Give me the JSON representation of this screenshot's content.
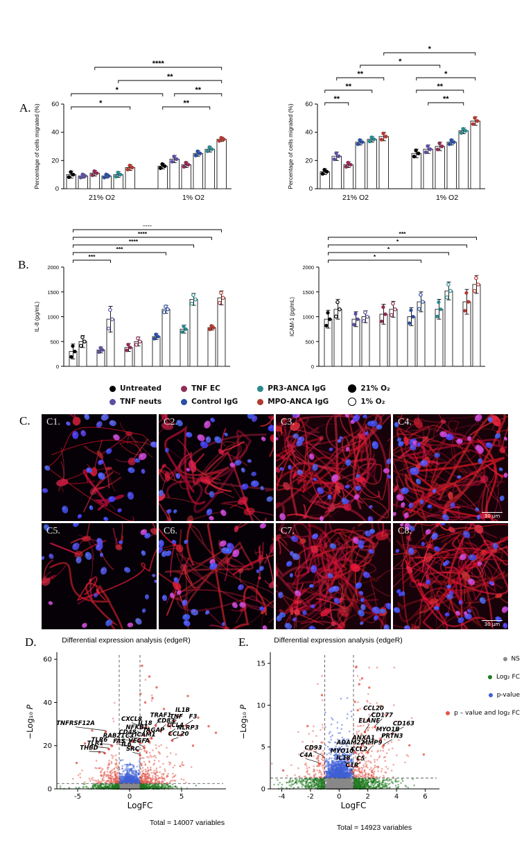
{
  "panels": {
    "a": {
      "label": "A."
    },
    "b": {
      "label": "B."
    },
    "c": {
      "label": "C."
    },
    "d": {
      "label": "D."
    },
    "e": {
      "label": "E."
    }
  },
  "legend": {
    "treatments": [
      {
        "label": "Untreated",
        "color": "#000000"
      },
      {
        "label": "TNF neuts",
        "color": "#5e4fa2"
      },
      {
        "label": "TNF EC",
        "color": "#8f2d56"
      },
      {
        "label": "Control IgG",
        "color": "#2b50a1"
      },
      {
        "label": "PR3-ANCA IgG",
        "color": "#2a8a8f"
      },
      {
        "label": "MPO-ANCA IgG",
        "color": "#b23a30"
      }
    ],
    "oxygen": [
      {
        "label": "21% O₂",
        "style": "filled"
      },
      {
        "label": "1% O₂",
        "style": "open"
      }
    ]
  },
  "volcano_legend": {
    "items": [
      {
        "label": "NS",
        "color": "#8a8a8a"
      },
      {
        "label": "Log₂ FC",
        "color": "#1f7a1f"
      },
      {
        "label": "p-value",
        "color": "#3f5fd6"
      },
      {
        "label": "p – value and log₂ FC",
        "color": "#e25549"
      }
    ]
  },
  "panel_c": {
    "tiles": [
      {
        "label": "C1.",
        "density": "low"
      },
      {
        "label": "C2.",
        "density": "medium"
      },
      {
        "label": "C3.",
        "density": "high"
      },
      {
        "label": "C4.",
        "density": "high",
        "scale_bar": "30 μm"
      },
      {
        "label": "C5.",
        "density": "low"
      },
      {
        "label": "C6.",
        "density": "medium"
      },
      {
        "label": "C7.",
        "density": "high"
      },
      {
        "label": "C8.",
        "density": "high",
        "scale_bar": "30 μm"
      }
    ]
  },
  "chart_data": [
    {
      "id": "A1",
      "type": "bar",
      "panel": "A",
      "ylabel": "Percentage of cells migrated (%)",
      "ylim": [
        0,
        60
      ],
      "yticks": [
        0,
        20,
        40,
        60
      ],
      "groups": [
        "21% O2",
        "1% O2"
      ],
      "series_labels": [
        "Untreated",
        "TNF neuts",
        "TNF EC",
        "Control IgG",
        "PR3-ANCA IgG",
        "MPO-ANCA IgG"
      ],
      "values": [
        [
          10,
          9,
          11,
          9,
          10,
          15
        ],
        [
          16,
          21,
          17,
          25,
          28,
          35
        ]
      ],
      "sd": [
        [
          2.5,
          1.5,
          2,
          1.5,
          2,
          2
        ],
        [
          2,
          2.5,
          2,
          2,
          2,
          1.5
        ]
      ],
      "brackets": [
        {
          "from": 0,
          "to": 5,
          "level": 1,
          "label": "*"
        },
        {
          "from": 6,
          "to": 10,
          "level": 1,
          "label": "**"
        },
        {
          "from": 0,
          "to": 6,
          "level": 2,
          "label": "*"
        },
        {
          "from": 7,
          "to": 11,
          "level": 2,
          "label": "**"
        },
        {
          "from": 4,
          "to": 11,
          "level": 3,
          "label": "**"
        },
        {
          "from": 2,
          "to": 11,
          "level": 4,
          "label": "****"
        }
      ]
    },
    {
      "id": "A2",
      "type": "bar",
      "panel": "A",
      "ylabel": "Percentage of cells migrated (%)",
      "ylim": [
        0,
        60
      ],
      "yticks": [
        0,
        20,
        40,
        60
      ],
      "groups": [
        "21% O2",
        "1% O2"
      ],
      "series_labels": [
        "Untreated",
        "TNF neuts",
        "TNF EC",
        "Control IgG",
        "PR3-ANCA IgG",
        "MPO-ANCA IgG"
      ],
      "values": [
        [
          12,
          23,
          17,
          33,
          35,
          37
        ],
        [
          25,
          28,
          30,
          33,
          41,
          48
        ]
      ],
      "sd": [
        [
          2,
          3,
          2,
          2,
          2,
          3
        ],
        [
          3,
          3,
          3,
          2,
          2,
          3
        ]
      ],
      "brackets": [
        {
          "from": 0,
          "to": 2,
          "level": 1,
          "label": "**"
        },
        {
          "from": 7,
          "to": 10,
          "level": 1,
          "label": "**"
        },
        {
          "from": 0,
          "to": 4,
          "level": 2,
          "label": "**"
        },
        {
          "from": 6,
          "to": 10,
          "level": 2,
          "label": "**"
        },
        {
          "from": 1,
          "to": 5,
          "level": 3,
          "label": "**"
        },
        {
          "from": 6,
          "to": 11,
          "level": 3,
          "label": "*"
        },
        {
          "from": 3,
          "to": 8,
          "level": 4,
          "label": "*"
        },
        {
          "from": 5,
          "to": 11,
          "level": 5,
          "label": "*"
        }
      ]
    },
    {
      "id": "B1",
      "type": "bar",
      "panel": "B",
      "pairs": true,
      "ylabel": "IL-8 (pg/mL)",
      "ylim": [
        0,
        2000
      ],
      "yticks": [
        0,
        500,
        1000,
        1500,
        2000
      ],
      "series_labels": [
        "Untreated",
        "TNF neuts",
        "TNF EC",
        "Control IgG",
        "PR3-ANCA IgG",
        "MPO-ANCA IgG"
      ],
      "pair_labels": [
        "21% O₂",
        "1% O₂"
      ],
      "values": [
        [
          300,
          500
        ],
        [
          330,
          950
        ],
        [
          380,
          500
        ],
        [
          600,
          1150
        ],
        [
          750,
          1350
        ],
        [
          780,
          1380
        ]
      ],
      "sd": [
        [
          150,
          120
        ],
        [
          60,
          260
        ],
        [
          80,
          90
        ],
        [
          60,
          80
        ],
        [
          80,
          120
        ],
        [
          50,
          140
        ]
      ],
      "brackets": [
        {
          "from": 0,
          "to": 3,
          "level": 1,
          "label": "***"
        },
        {
          "from": 0,
          "to": 7,
          "level": 2,
          "label": "***"
        },
        {
          "from": 0,
          "to": 9,
          "level": 3,
          "label": "****"
        },
        {
          "from": 0,
          "to": 10,
          "level": 4,
          "label": "****"
        },
        {
          "from": 0,
          "to": 11,
          "level": 5,
          "label": "****"
        }
      ]
    },
    {
      "id": "B2",
      "type": "bar",
      "panel": "B",
      "pairs": true,
      "ylabel": "ICAM-1 (pg/mL)",
      "ylim": [
        0,
        2000
      ],
      "yticks": [
        0,
        500,
        1000,
        1500,
        2000
      ],
      "series_labels": [
        "Untreated",
        "TNF neuts",
        "TNF EC",
        "Control IgG",
        "PR3-ANCA IgG",
        "MPO-ANCA IgG"
      ],
      "pair_labels": [
        "21% O₂",
        "1% O₂"
      ],
      "values": [
        [
          950,
          1150
        ],
        [
          950,
          1000
        ],
        [
          1050,
          1150
        ],
        [
          1000,
          1300
        ],
        [
          1150,
          1520
        ],
        [
          1300,
          1650
        ]
      ],
      "sd": [
        [
          180,
          200
        ],
        [
          150,
          120
        ],
        [
          200,
          160
        ],
        [
          180,
          200
        ],
        [
          200,
          180
        ],
        [
          250,
          180
        ]
      ],
      "brackets": [
        {
          "from": 0,
          "to": 7,
          "level": 1,
          "label": "*"
        },
        {
          "from": 0,
          "to": 9,
          "level": 2,
          "label": "*"
        },
        {
          "from": 0,
          "to": 10,
          "level": 3,
          "label": "*"
        },
        {
          "from": 0,
          "to": 11,
          "level": 4,
          "label": "***"
        }
      ]
    },
    {
      "id": "D",
      "type": "scatter",
      "subtype": "volcano",
      "title": "Differential expression analysis (edgeR)",
      "xlabel": "LogFC",
      "ylabel": "−Log₁₀ P",
      "xlim": [
        -7,
        9
      ],
      "xticks": [
        -5,
        0,
        5
      ],
      "ylim": [
        0,
        62
      ],
      "yticks": [
        0,
        20,
        40,
        60
      ],
      "thresholds": {
        "x": [
          -1,
          1
        ],
        "y": 2.5
      },
      "total_label": "Total = 14007 variables",
      "gene_labels": [
        {
          "name": "TNFRSF12A",
          "label_x": -5.2,
          "label_y": 29.5,
          "point_x": -2.3,
          "point_y": 26.5
        },
        {
          "name": "CXCL8",
          "label_x": 0.2,
          "label_y": 31.5,
          "point_x": 1.2,
          "point_y": 28.2
        },
        {
          "name": "IL18",
          "label_x": 1.5,
          "label_y": 29.6,
          "point_x": 1.9,
          "point_y": 26.4
        },
        {
          "name": "TRAF1",
          "label_x": 3.0,
          "label_y": 33.2,
          "point_x": 2.5,
          "point_y": 29.3
        },
        {
          "name": "IL1B",
          "label_x": 5.1,
          "label_y": 35.6,
          "point_x": 4.3,
          "point_y": 31.4
        },
        {
          "name": "TNF",
          "label_x": 4.5,
          "label_y": 32.6,
          "point_x": 3.9,
          "point_y": 29.2
        },
        {
          "name": "F3",
          "label_x": 6.1,
          "label_y": 32.6,
          "point_x": 5.4,
          "point_y": 29.3
        },
        {
          "name": "CD83",
          "label_x": 3.5,
          "label_y": 30.6,
          "point_x": 3.0,
          "point_y": 27.2
        },
        {
          "name": "CCL4",
          "label_x": 4.4,
          "label_y": 28.6,
          "point_x": 3.9,
          "point_y": 25.6
        },
        {
          "name": "NLRP3",
          "label_x": 5.6,
          "label_y": 27.4,
          "point_x": 4.9,
          "point_y": 24.8
        },
        {
          "name": "NFKB1",
          "label_x": 0.7,
          "label_y": 27.6,
          "point_x": 1.4,
          "point_y": 24.6
        },
        {
          "name": "TAGAP",
          "label_x": 2.3,
          "label_y": 26.3,
          "point_x": 2.1,
          "point_y": 23.4
        },
        {
          "name": "CD48",
          "label_x": -0.2,
          "label_y": 25.4,
          "point_x": 0.9,
          "point_y": 22.9
        },
        {
          "name": "ICAM1",
          "label_x": 1.5,
          "label_y": 24.2,
          "point_x": 1.9,
          "point_y": 21.8
        },
        {
          "name": "RAB21",
          "label_x": -1.5,
          "label_y": 23.8,
          "point_x": 0.3,
          "point_y": 21.9
        },
        {
          "name": "C3",
          "label_x": 0.0,
          "label_y": 23.6,
          "point_x": 1.0,
          "point_y": 21.4
        },
        {
          "name": "CCL20",
          "label_x": 4.7,
          "label_y": 24.6,
          "point_x": 4.1,
          "point_y": 22.4
        },
        {
          "name": "TLR6",
          "label_x": -2.9,
          "label_y": 21.9,
          "point_x": -1.7,
          "point_y": 19.9
        },
        {
          "name": "FAS",
          "label_x": -1.0,
          "label_y": 21.2,
          "point_x": 0.2,
          "point_y": 19.4
        },
        {
          "name": "VEGFA",
          "label_x": 0.9,
          "label_y": 21.3,
          "point_x": 1.4,
          "point_y": 19.0
        },
        {
          "name": "TLR1",
          "label_x": -3.3,
          "label_y": 20.3,
          "point_x": -2.0,
          "point_y": 18.4
        },
        {
          "name": "IL6",
          "label_x": -0.3,
          "label_y": 19.7,
          "point_x": 0.8,
          "point_y": 17.6
        },
        {
          "name": "THBD",
          "label_x": -3.9,
          "label_y": 18.2,
          "point_x": -2.4,
          "point_y": 16.5
        },
        {
          "name": "SRC",
          "label_x": 0.3,
          "label_y": 17.7,
          "point_x": 1.0,
          "point_y": 15.6
        }
      ]
    },
    {
      "id": "E",
      "type": "scatter",
      "subtype": "volcano",
      "title": "Differential expression analysis (edgeR)",
      "xlabel": "LogFC",
      "ylabel": "−Log₁₀ P",
      "xlim": [
        -4.8,
        6.8
      ],
      "xticks": [
        -4,
        -2,
        0,
        2,
        4,
        6
      ],
      "ylim": [
        0,
        16
      ],
      "yticks": [
        0,
        5,
        10,
        15
      ],
      "thresholds": {
        "x": [
          -1,
          1
        ],
        "y": 1.3
      },
      "total_label": "Total = 14923 variables",
      "gene_labels": [
        {
          "name": "CCL20",
          "label_x": 2.4,
          "label_y": 9.4,
          "point_x": 2.0,
          "point_y": 8.2
        },
        {
          "name": "CD177",
          "label_x": 3.0,
          "label_y": 8.6,
          "point_x": 2.5,
          "point_y": 7.4
        },
        {
          "name": "ELANE",
          "label_x": 2.1,
          "label_y": 7.9,
          "point_x": 1.8,
          "point_y": 6.8
        },
        {
          "name": "CD163",
          "label_x": 4.5,
          "label_y": 7.6,
          "point_x": 3.7,
          "point_y": 6.6
        },
        {
          "name": "MYO1B",
          "label_x": 3.4,
          "label_y": 6.9,
          "point_x": 2.9,
          "point_y": 5.9
        },
        {
          "name": "PRTN3",
          "label_x": 3.7,
          "label_y": 6.1,
          "point_x": 3.1,
          "point_y": 5.2
        },
        {
          "name": "ANXA1",
          "label_x": 1.7,
          "label_y": 5.9,
          "point_x": 1.5,
          "point_y": 4.9
        },
        {
          "name": "ADAM22",
          "label_x": 0.8,
          "label_y": 5.3,
          "point_x": 1.1,
          "point_y": 4.4
        },
        {
          "name": "MMP9",
          "label_x": 2.3,
          "label_y": 5.3,
          "point_x": 2.0,
          "point_y": 4.4
        },
        {
          "name": "CD93",
          "label_x": -1.8,
          "label_y": 4.7,
          "point_x": -1.1,
          "point_y": 3.8
        },
        {
          "name": "MYO10",
          "label_x": 0.2,
          "label_y": 4.3,
          "point_x": 0.6,
          "point_y": 3.5
        },
        {
          "name": "CCL2",
          "label_x": 1.4,
          "label_y": 4.5,
          "point_x": 1.3,
          "point_y": 3.6
        },
        {
          "name": "C4A",
          "label_x": -2.3,
          "label_y": 3.8,
          "point_x": -1.4,
          "point_y": 3.0
        },
        {
          "name": "IL18",
          "label_x": 0.3,
          "label_y": 3.5,
          "point_x": 0.7,
          "point_y": 2.8
        },
        {
          "name": "C5",
          "label_x": 1.5,
          "label_y": 3.4,
          "point_x": 1.2,
          "point_y": 2.7
        },
        {
          "name": "C1R",
          "label_x": 0.9,
          "label_y": 2.6,
          "point_x": 0.9,
          "point_y": 2.0
        }
      ]
    }
  ]
}
